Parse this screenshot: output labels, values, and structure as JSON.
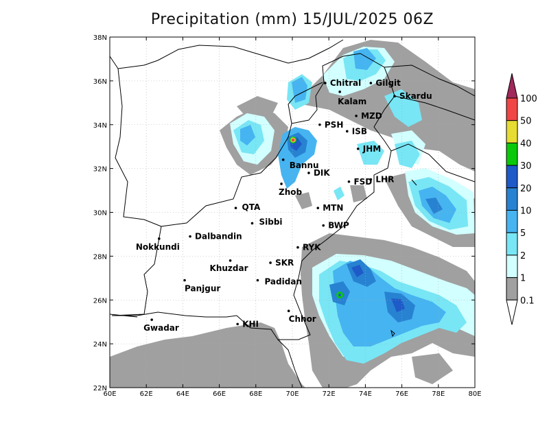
{
  "title": "Precipitation (mm) 15/JUL/2025 06Z",
  "map": {
    "lon_range": [
      60,
      80
    ],
    "lat_range": [
      22,
      38
    ],
    "x_ticks": [
      "60E",
      "62E",
      "64E",
      "66E",
      "68E",
      "70E",
      "72E",
      "74E",
      "76E",
      "78E",
      "80E"
    ],
    "y_ticks": [
      "22N",
      "24N",
      "26N",
      "28N",
      "30N",
      "32N",
      "34N",
      "36N",
      "38N"
    ],
    "grid": "dotted"
  },
  "legend": {
    "labels": [
      "0.1",
      "1",
      "2",
      "5",
      "10",
      "20",
      "30",
      "40",
      "50",
      "100"
    ],
    "colors": [
      "#a0a0a0",
      "#d2ffff",
      "#78e6f5",
      "#46b4f0",
      "#2882d2",
      "#1e5ac8",
      "#0ac80a",
      "#e6dc32",
      "#f04646",
      "#a0285a"
    ]
  },
  "cities": [
    {
      "name": "Chitral",
      "lon": 71.8,
      "lat": 35.9
    },
    {
      "name": "Gilgit",
      "lon": 74.3,
      "lat": 35.9
    },
    {
      "name": "Kalam",
      "lon": 72.6,
      "lat": 35.5
    },
    {
      "name": "Skardu",
      "lon": 75.6,
      "lat": 35.3
    },
    {
      "name": "MZD",
      "lon": 73.5,
      "lat": 34.4
    },
    {
      "name": "PSH",
      "lon": 71.5,
      "lat": 34.0
    },
    {
      "name": "ISB",
      "lon": 73.0,
      "lat": 33.7
    },
    {
      "name": "JHM",
      "lon": 73.6,
      "lat": 32.9
    },
    {
      "name": "Bannu",
      "lon": 69.5,
      "lat": 32.4
    },
    {
      "name": "DIK",
      "lon": 70.9,
      "lat": 31.8
    },
    {
      "name": "FSD",
      "lon": 73.1,
      "lat": 31.4
    },
    {
      "name": "LHR",
      "lon": 74.3,
      "lat": 31.5
    },
    {
      "name": "Zhob",
      "lon": 69.4,
      "lat": 31.3
    },
    {
      "name": "QTA",
      "lon": 66.9,
      "lat": 30.2
    },
    {
      "name": "MTN",
      "lon": 71.4,
      "lat": 30.2
    },
    {
      "name": "Sibbi",
      "lon": 67.8,
      "lat": 29.5
    },
    {
      "name": "BWP",
      "lon": 71.7,
      "lat": 29.4
    },
    {
      "name": "Dalbandin",
      "lon": 64.4,
      "lat": 28.9
    },
    {
      "name": "Nokkundi",
      "lon": 62.7,
      "lat": 28.8
    },
    {
      "name": "RYK",
      "lon": 70.3,
      "lat": 28.4
    },
    {
      "name": "Khuzdar",
      "lon": 66.6,
      "lat": 27.8
    },
    {
      "name": "SKR",
      "lon": 68.8,
      "lat": 27.7
    },
    {
      "name": "Panjgur",
      "lon": 64.1,
      "lat": 26.9
    },
    {
      "name": "Padidan",
      "lon": 68.1,
      "lat": 26.9
    },
    {
      "name": "Chhor",
      "lon": 69.8,
      "lat": 25.5
    },
    {
      "name": "KHI",
      "lon": 67.0,
      "lat": 24.9
    },
    {
      "name": "Gwadar",
      "lon": 62.3,
      "lat": 25.1
    }
  ]
}
